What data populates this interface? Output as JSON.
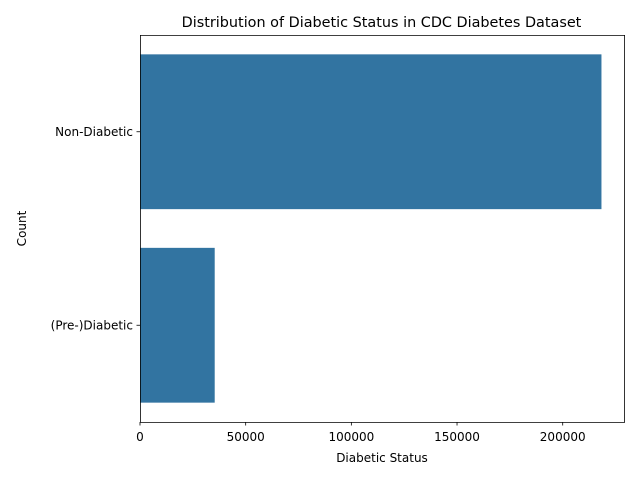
{
  "chart_data": {
    "type": "bar",
    "orientation": "horizontal",
    "title": "Distribution of Diabetic Status in CDC Diabetes Dataset",
    "xlabel": "Diabetic Status",
    "ylabel": "Count",
    "categories": [
      "Non-Diabetic",
      "(Pre-)Diabetic"
    ],
    "values": [
      218334,
      35346
    ],
    "xlim": [
      0,
      229000
    ],
    "xticks": [
      0,
      50000,
      100000,
      150000,
      200000
    ],
    "xtick_labels": [
      "0",
      "50000",
      "100000",
      "150000",
      "200000"
    ],
    "bar_color": "#3274a1",
    "grid": false,
    "legend": false
  }
}
